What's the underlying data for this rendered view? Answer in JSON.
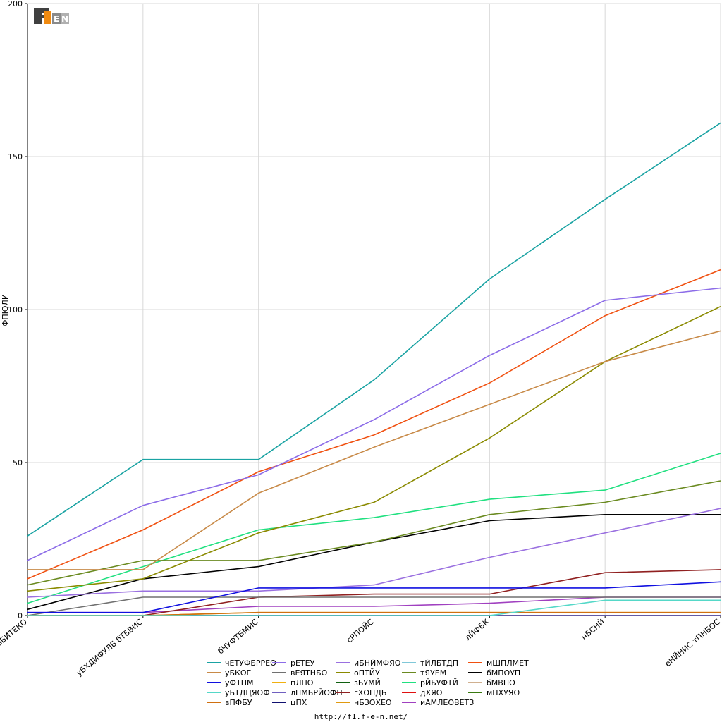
{
  "source_url": "http://f1.f-e-n.net/",
  "logo_text": "F1FEN",
  "chart_data": {
    "type": "line",
    "ylabel": "ФПЮЛИ",
    "xlabel": "",
    "ylim": [
      0,
      200
    ],
    "yticks": [
      0,
      50,
      100,
      150,
      200
    ],
    "grid": true,
    "legend_position": "bottom",
    "categories": [
      "вБИТЕКО",
      "уБХДИФУЛБ бТБВИС",
      "бЧУФТБМИС",
      "сРПОЙС",
      "лЙФБК",
      "нБСНЙ",
      "еНЙНИС тПНБОС"
    ],
    "series": [
      {
        "name": "чЕТУФБРРЕО",
        "color": "#1aa3a3",
        "values": [
          26,
          51,
          51,
          77,
          110,
          136,
          161
        ]
      },
      {
        "name": "уБКОГ",
        "color": "#c88a48",
        "values": [
          15,
          15,
          40,
          55,
          69,
          83,
          93
        ]
      },
      {
        "name": "уФТПМ",
        "color": "#1010e0",
        "values": [
          1,
          1,
          9,
          9,
          9,
          9,
          11
        ]
      },
      {
        "name": "уБТДЦЯОФ",
        "color": "#55d8c8",
        "values": [
          0,
          0,
          0,
          0,
          0,
          5,
          5
        ]
      },
      {
        "name": "вПФБУ",
        "color": "#d07010",
        "values": [
          0,
          0,
          1,
          1,
          1,
          1,
          1
        ]
      },
      {
        "name": "рЕТЕУ",
        "color": "#8c6ce8",
        "values": [
          18,
          36,
          46,
          64,
          85,
          103,
          107
        ]
      },
      {
        "name": "вЕЯТНБО",
        "color": "#707070",
        "values": [
          0,
          6,
          6,
          6,
          6,
          6,
          6
        ]
      },
      {
        "name": "пЛПО",
        "color": "#f0b010",
        "values": [
          0,
          0,
          1,
          1,
          1,
          1,
          1
        ]
      },
      {
        "name": "лПМБРЙОФП",
        "color": "#7060c0",
        "values": [
          0,
          0,
          0,
          0,
          0,
          0,
          0
        ]
      },
      {
        "name": "цПХ",
        "color": "#101070",
        "values": [
          0,
          0,
          0,
          0,
          0,
          0,
          0
        ]
      },
      {
        "name": "иБНЙМФЯО",
        "color": "#9a70e0",
        "values": [
          6,
          8,
          8,
          10,
          19,
          27,
          35
        ]
      },
      {
        "name": "оПТЙУ",
        "color": "#8a8a00",
        "values": [
          8,
          12,
          27,
          37,
          58,
          83,
          101
        ]
      },
      {
        "name": "зБУМЙ",
        "color": "#106010",
        "values": [
          0,
          0,
          0,
          0,
          0,
          0,
          0
        ]
      },
      {
        "name": "гХОПДБ",
        "color": "#902020",
        "values": [
          0,
          0,
          6,
          7,
          7,
          14,
          15
        ]
      },
      {
        "name": "нБЗОХЕО",
        "color": "#e09a10",
        "values": [
          0,
          0,
          0,
          0,
          0,
          0,
          0
        ]
      },
      {
        "name": "тЙЛБТДП",
        "color": "#80c8d8",
        "values": [
          0,
          0,
          0,
          0,
          0,
          0,
          0
        ]
      },
      {
        "name": "тЯУЕМ",
        "color": "#6a8a20",
        "values": [
          10,
          18,
          18,
          24,
          33,
          37,
          44
        ]
      },
      {
        "name": "рЙБУФТЙ",
        "color": "#20e080",
        "values": [
          4,
          16,
          28,
          32,
          38,
          41,
          53
        ]
      },
      {
        "name": "дХЯО",
        "color": "#e01010",
        "values": [
          0,
          0,
          0,
          0,
          0,
          0,
          0
        ]
      },
      {
        "name": "иАМЛЕОВЕТЗ",
        "color": "#a040c0",
        "values": [
          1,
          1,
          3,
          3,
          4,
          6,
          6
        ]
      },
      {
        "name": "мШПЛМЕТ",
        "color": "#f05010",
        "values": [
          12,
          28,
          47,
          59,
          76,
          98,
          113
        ]
      },
      {
        "name": "бМПОУП",
        "color": "#000000",
        "values": [
          2,
          12,
          16,
          24,
          31,
          33,
          33
        ]
      },
      {
        "name": "бМВПО",
        "color": "#d0b090",
        "values": [
          0,
          0,
          0,
          0,
          0,
          0,
          0
        ]
      },
      {
        "name": "мПХУЯО",
        "color": "#3a7a10",
        "values": [
          0,
          0,
          0,
          0,
          0,
          0,
          0
        ]
      }
    ]
  }
}
